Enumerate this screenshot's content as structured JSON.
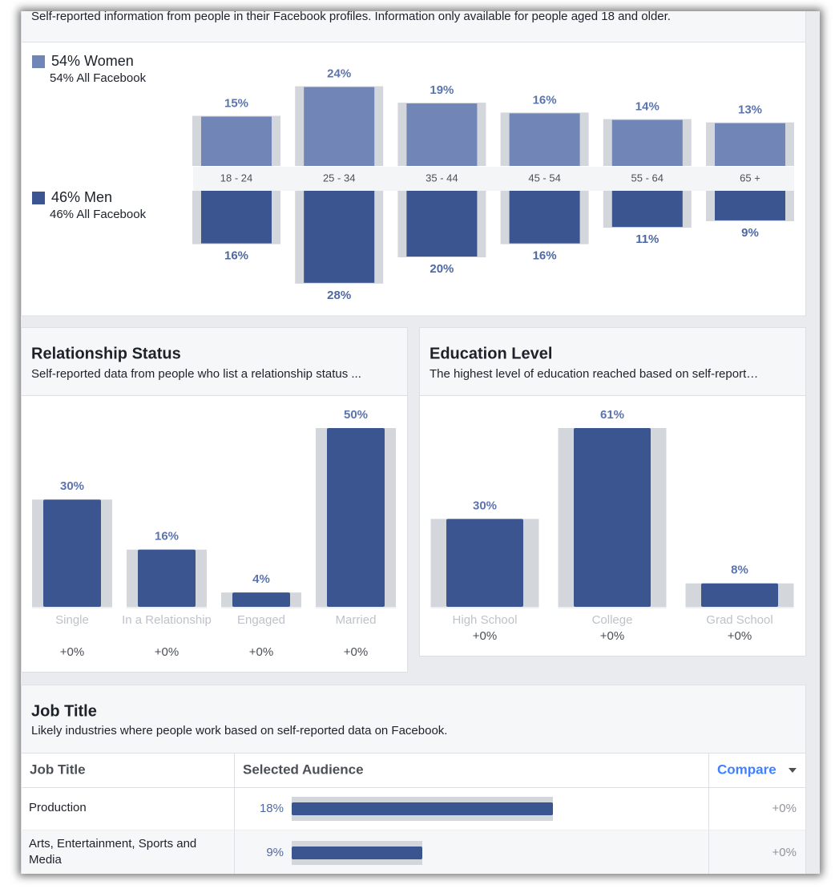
{
  "top_panel": {
    "subtitle": "Self-reported information from people in their Facebook profiles. Information only available for people aged 18 and older."
  },
  "gender_age": {
    "categories": [
      "18 - 24",
      "25 - 34",
      "35 - 44",
      "45 - 54",
      "55 - 64",
      "65 +"
    ],
    "series": [
      {
        "name": "54% Women",
        "benchmark": "54% All Facebook",
        "color": "#7186b7",
        "label_color": "#5b74ad",
        "values": [
          15,
          24,
          19,
          16,
          14,
          13
        ],
        "value_labels": [
          "15%",
          "24%",
          "19%",
          "16%",
          "14%",
          "13%"
        ]
      },
      {
        "name": "46% Men",
        "benchmark": "46% All Facebook",
        "color": "#3a5590",
        "label_color": "#4e69a2",
        "values": [
          16,
          28,
          20,
          16,
          11,
          9
        ],
        "value_labels": [
          "16%",
          "28%",
          "20%",
          "16%",
          "11%",
          "9%"
        ]
      }
    ]
  },
  "relationship_status": {
    "title": "Relationship Status",
    "subtitle": "Self-reported data from people who list a relationship status ...",
    "categories": [
      "Single",
      "In a Relationship",
      "Engaged",
      "Married"
    ],
    "values": [
      30,
      16,
      4,
      50
    ],
    "value_labels": [
      "30%",
      "16%",
      "4%",
      "50%"
    ],
    "changes": [
      "+0%",
      "+0%",
      "+0%",
      "+0%"
    ],
    "color": "#3a5590"
  },
  "education_level": {
    "title": "Education Level",
    "subtitle": "The highest level of education reached based on self-report…",
    "categories": [
      "High School",
      "College",
      "Grad School"
    ],
    "values": [
      30,
      61,
      8
    ],
    "value_labels": [
      "30%",
      "61%",
      "8%"
    ],
    "changes": [
      "+0%",
      "+0%",
      "+0%"
    ],
    "color": "#3a5590"
  },
  "job_title": {
    "title": "Job Title",
    "subtitle": "Likely industries where people work based on self-reported data on Facebook.",
    "columns": [
      "Job Title",
      "Selected Audience",
      "Compare"
    ],
    "color": "#3a5590",
    "rows": [
      {
        "label": "Production",
        "value": 18,
        "value_label": "18%",
        "change": "+0%"
      },
      {
        "label": "Arts, Entertainment, Sports and Media",
        "value": 9,
        "value_label": "9%",
        "change": "+0%"
      }
    ]
  }
}
